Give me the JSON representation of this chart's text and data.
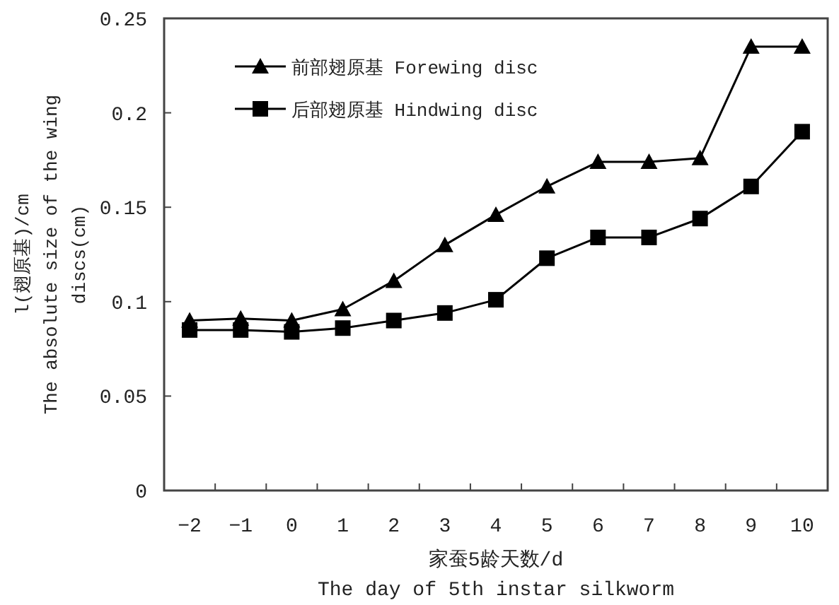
{
  "chart_data": {
    "type": "line",
    "xlabel": "家蚕5龄天数/d\nThe day of 5th instar silkworm",
    "ylabel": "l(翅原基)/cm\nThe absolute size of the wing\ndiscs(cm)",
    "categories": [
      "−2",
      "−1",
      "0",
      "1",
      "2",
      "3",
      "4",
      "5",
      "6",
      "7",
      "8",
      "9",
      "10"
    ],
    "series": [
      {
        "name": "前部翅原基 Forewing disc",
        "color": "#000000",
        "marker": "triangle",
        "values": [
          0.09,
          0.091,
          0.09,
          0.096,
          0.111,
          0.13,
          0.146,
          0.161,
          0.174,
          0.174,
          0.176,
          0.235,
          0.235
        ]
      },
      {
        "name": "后部翅原基 Hindwing disc",
        "color": "#000000",
        "marker": "square",
        "values": [
          0.085,
          0.085,
          0.084,
          0.086,
          0.09,
          0.094,
          0.101,
          0.123,
          0.134,
          0.134,
          0.144,
          0.161,
          0.19
        ]
      }
    ],
    "ylim": [
      0,
      0.25
    ],
    "yticks": [
      0,
      0.05,
      0.1,
      0.15,
      0.2,
      0.25
    ],
    "grid": false,
    "legend": "top left",
    "line_style": "solid"
  }
}
